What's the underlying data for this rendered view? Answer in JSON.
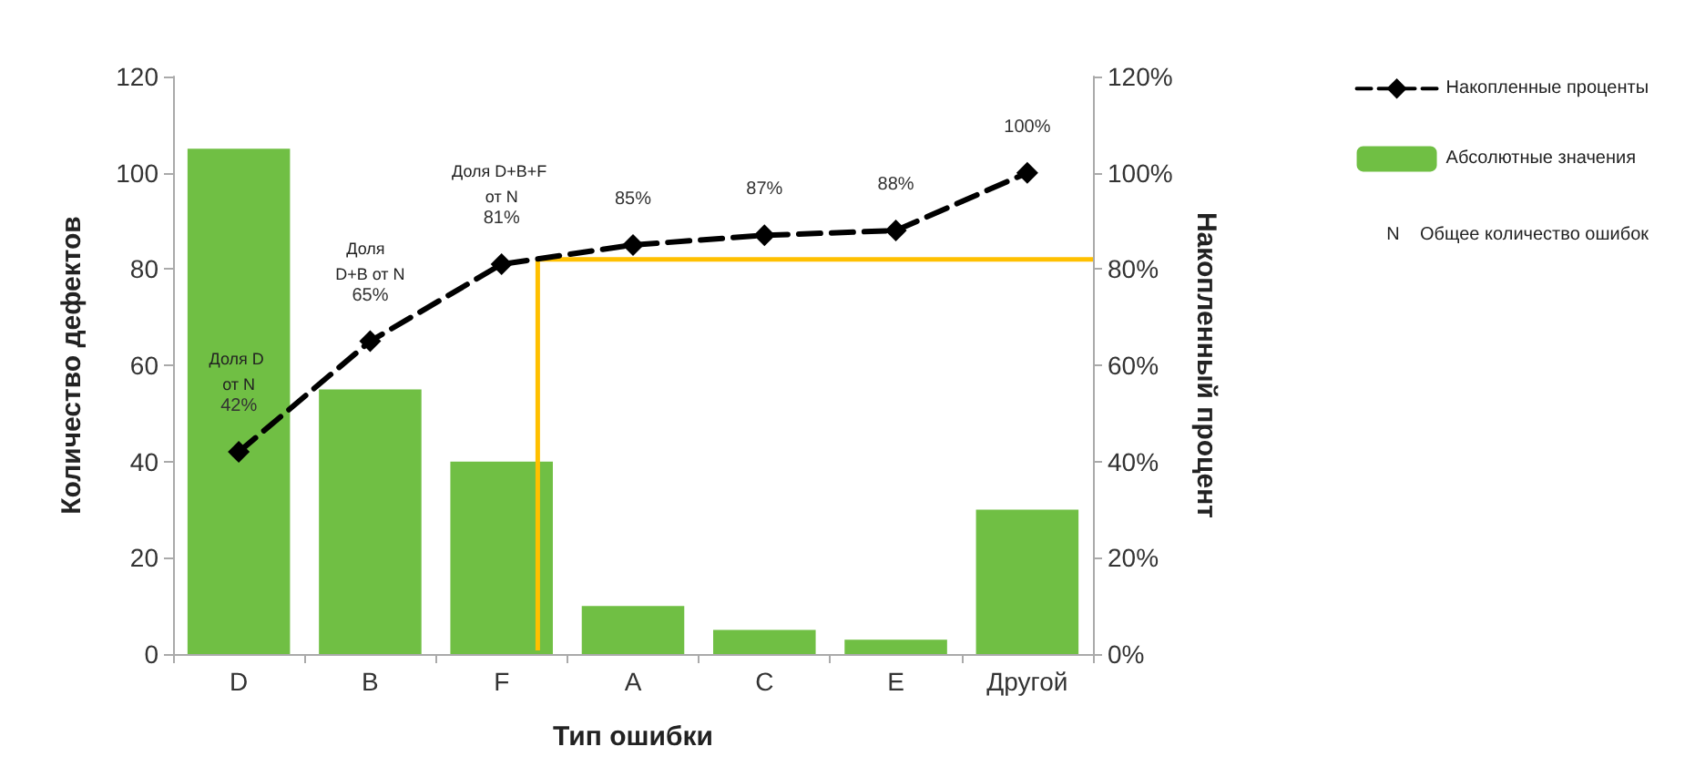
{
  "chart_data": {
    "type": "bar",
    "xlabel": "Тип ошибки",
    "ylabel": "Количество дефектов",
    "y2label": "Накопленный процент",
    "categories": [
      "D",
      "B",
      "F",
      "A",
      "C",
      "E",
      "Другой"
    ],
    "series": [
      {
        "name": "Абсолютные значения",
        "color": "#70bf44",
        "values": [
          105,
          55,
          40,
          10,
          5,
          3,
          30
        ]
      },
      {
        "name": "Накопленные проценты",
        "type": "line",
        "axis": "y2",
        "color": "#000000",
        "values": [
          42,
          65,
          81,
          85,
          87,
          88,
          100
        ],
        "value_labels": [
          "42%",
          "65%",
          "81%",
          "85%",
          "87%",
          "88%",
          "100%"
        ],
        "marker": "diamond",
        "line_style": "dashed"
      }
    ],
    "ylim": [
      0,
      120
    ],
    "yticks": [
      0,
      20,
      40,
      60,
      80,
      100,
      120
    ],
    "y2lim": [
      0,
      120
    ],
    "y2ticks": [
      {
        "value": 0,
        "label": "0%"
      },
      {
        "value": 20,
        "label": "20%"
      },
      {
        "value": 40,
        "label": "40%"
      },
      {
        "value": 60,
        "label": "60%"
      },
      {
        "value": 80,
        "label": "80%"
      },
      {
        "value": 100,
        "label": "100%"
      },
      {
        "value": 120,
        "label": "120%"
      }
    ],
    "ref_lines": [
      {
        "axis": "y2",
        "value": 82,
        "color": "#ffc000"
      },
      {
        "axis": "x",
        "value": "F",
        "color": "#ffc000"
      }
    ],
    "annotations": [
      "Доля D от N",
      "Доля  D+B от N",
      "Доля D+B+F от N",
      "N    Общее количество ошибок"
    ],
    "legend": "top right",
    "grid": false
  }
}
